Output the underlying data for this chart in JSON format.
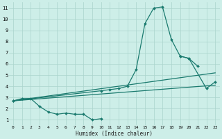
{
  "xlabel": "Humidex (Indice chaleur)",
  "bg_color": "#cdeee8",
  "grid_color": "#aad4cc",
  "line_color": "#1a7a6e",
  "xlim": [
    -0.5,
    23.5
  ],
  "ylim": [
    0.5,
    11.5
  ],
  "xticks": [
    0,
    1,
    2,
    3,
    4,
    5,
    6,
    7,
    8,
    9,
    10,
    11,
    12,
    13,
    14,
    15,
    16,
    17,
    18,
    19,
    20,
    21,
    22,
    23
  ],
  "yticks": [
    1,
    2,
    3,
    4,
    5,
    6,
    7,
    8,
    9,
    10,
    11
  ],
  "series": [
    {
      "x": [
        0,
        1,
        2,
        3,
        4,
        5,
        6,
        7,
        8,
        9,
        10
      ],
      "y": [
        2.7,
        2.9,
        2.9,
        2.2,
        1.7,
        1.5,
        1.6,
        1.5,
        1.5,
        1.0,
        1.1
      ],
      "marker": true
    },
    {
      "x": [
        0,
        10,
        11,
        12,
        13,
        14,
        15,
        16,
        17,
        18,
        19,
        20,
        21
      ],
      "y": [
        2.7,
        3.6,
        3.7,
        3.8,
        4.0,
        5.5,
        9.6,
        11.0,
        11.1,
        8.2,
        6.7,
        6.5,
        5.8
      ],
      "marker": true
    },
    {
      "x": [
        19,
        20,
        22,
        23
      ],
      "y": [
        6.7,
        6.5,
        3.8,
        4.4
      ],
      "marker": true
    },
    {
      "x": [
        0,
        23
      ],
      "y": [
        2.7,
        4.1
      ],
      "marker": false
    },
    {
      "x": [
        0,
        23
      ],
      "y": [
        2.7,
        5.2
      ],
      "marker": false
    }
  ]
}
